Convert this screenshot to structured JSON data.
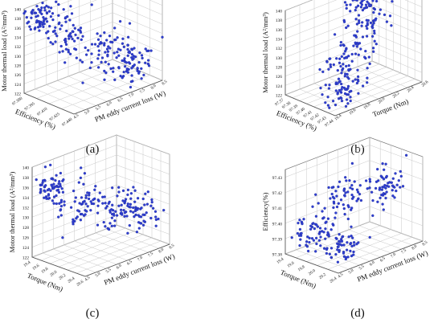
{
  "figure": {
    "panel_labels": [
      "(a)",
      "(b)",
      "(c)",
      "(d)"
    ]
  },
  "chart_data": [
    {
      "type": "scatter",
      "panel": "(a)",
      "dim": "3d",
      "zlabel": "Motor thermal load (A²/mm³)",
      "zticks": [
        "122",
        "124",
        "126",
        "128",
        "130",
        "132",
        "134",
        "136",
        "138",
        "140"
      ],
      "zlim": [
        122,
        140
      ],
      "xlabel": "Efficiency (%)",
      "xticks": [
        "97.380",
        "97.395",
        "97.410",
        "97.425",
        "97.440"
      ],
      "xlim": [
        97.38,
        97.44
      ],
      "ylabel": "PM eddy current loss (W)",
      "yticks": [
        "4.5",
        "5.0",
        "5.5",
        "6.0",
        "6.5",
        "7.0",
        "7.5",
        "8.0",
        "8.5"
      ],
      "ylim": [
        4.5,
        8.5
      ],
      "marker_color": "#2f3fd1",
      "clusters": [
        {
          "x": 97.386,
          "y": 4.9,
          "z": 138.0,
          "sx": 0.006,
          "sy": 0.35,
          "sz": 1.4,
          "n": 60
        },
        {
          "x": 97.402,
          "y": 5.6,
          "z": 134.0,
          "sx": 0.005,
          "sy": 0.45,
          "sz": 2.2,
          "n": 60
        },
        {
          "x": 97.42,
          "y": 6.8,
          "z": 130.0,
          "sx": 0.006,
          "sy": 0.55,
          "sz": 2.4,
          "n": 70
        },
        {
          "x": 97.432,
          "y": 7.6,
          "z": 126.5,
          "sx": 0.005,
          "sy": 0.45,
          "sz": 2.0,
          "n": 60
        }
      ]
    },
    {
      "type": "scatter",
      "panel": "(b)",
      "dim": "3d",
      "zlabel": "Motor thermal load (A²/mm³)",
      "zticks": [
        "122",
        "124",
        "126",
        "128",
        "130",
        "132",
        "134",
        "136",
        "138",
        "140"
      ],
      "zlim": [
        122,
        140
      ],
      "xlabel": "Efficiency (%)",
      "xticks": [
        "97.37",
        "97.38",
        "97.39",
        "97.40",
        "97.41",
        "97.42",
        "97.43",
        "97.44"
      ],
      "xlim": [
        97.37,
        97.44
      ],
      "ylabel": "Torque (Nm)",
      "yticks": [
        "19.4",
        "19.6",
        "19.8",
        "20.0",
        "20.2",
        "20.4",
        "20.6"
      ],
      "ylim": [
        19.4,
        20.6
      ],
      "marker_color": "#2f3fd1",
      "clusters": [
        {
          "x": 97.385,
          "y": 20.3,
          "z": 137.5,
          "sx": 0.006,
          "sy": 0.12,
          "sz": 1.6,
          "n": 55
        },
        {
          "x": 97.4,
          "y": 20.2,
          "z": 133.5,
          "sx": 0.006,
          "sy": 0.15,
          "sz": 2.0,
          "n": 45
        },
        {
          "x": 97.418,
          "y": 19.8,
          "z": 129.5,
          "sx": 0.006,
          "sy": 0.15,
          "sz": 2.2,
          "n": 70
        },
        {
          "x": 97.43,
          "y": 19.6,
          "z": 125.5,
          "sx": 0.005,
          "sy": 0.12,
          "sz": 1.8,
          "n": 50
        }
      ]
    },
    {
      "type": "scatter",
      "panel": "(c)",
      "dim": "3d",
      "zlabel": "Motor thermal load (A²/mm³)",
      "zticks": [
        "122",
        "124",
        "126",
        "128",
        "130",
        "132",
        "134",
        "136",
        "138",
        "140"
      ],
      "zlim": [
        122,
        140
      ],
      "xlabel": "Torque (Nm)",
      "xticks": [
        "19.4",
        "19.6",
        "19.8",
        "20.0",
        "20.2",
        "20.4",
        "20.6"
      ],
      "xlim": [
        19.4,
        20.6
      ],
      "ylabel": "PM eddy current loss (W)",
      "yticks": [
        "4.5",
        "5.0",
        "5.5",
        "6.0",
        "6.5",
        "7.0",
        "7.5",
        "8.0",
        "8.5"
      ],
      "ylim": [
        4.5,
        8.5
      ],
      "marker_color": "#2f3fd1",
      "clusters": [
        {
          "x": 19.6,
          "y": 5.0,
          "z": 136.0,
          "sx": 0.1,
          "sy": 0.4,
          "sz": 1.8,
          "n": 60
        },
        {
          "x": 19.9,
          "y": 5.8,
          "z": 132.5,
          "sx": 0.12,
          "sy": 0.5,
          "sz": 2.0,
          "n": 60
        },
        {
          "x": 20.15,
          "y": 7.0,
          "z": 130.5,
          "sx": 0.1,
          "sy": 0.45,
          "sz": 1.8,
          "n": 60
        },
        {
          "x": 20.3,
          "y": 7.8,
          "z": 128.5,
          "sx": 0.1,
          "sy": 0.35,
          "sz": 1.6,
          "n": 50
        }
      ]
    },
    {
      "type": "scatter",
      "panel": "(d)",
      "dim": "3d",
      "zlabel": "Efficiency(%)",
      "zticks": [
        "97.38",
        "97.39",
        "97.40",
        "97.41",
        "97.42",
        "97.43"
      ],
      "zlim": [
        97.38,
        97.435
      ],
      "xlabel": "Torque (Nm)",
      "xticks": [
        "19.4",
        "19.6",
        "19.8",
        "20.0",
        "20.2",
        "20.4"
      ],
      "xlim": [
        19.4,
        20.5
      ],
      "ylabel": "PM eddy current loss (W)",
      "yticks": [
        "4.5",
        "5.0",
        "5.5",
        "6.0",
        "6.5",
        "7.0",
        "7.5",
        "8.0",
        "8.5"
      ],
      "ylim": [
        4.5,
        8.5
      ],
      "marker_color": "#2f3fd1",
      "clusters": [
        {
          "x": 19.95,
          "y": 6.2,
          "z": 97.415,
          "sx": 0.12,
          "sy": 0.6,
          "sz": 0.008,
          "n": 70
        },
        {
          "x": 20.2,
          "y": 7.5,
          "z": 97.418,
          "sx": 0.1,
          "sy": 0.45,
          "sz": 0.006,
          "n": 50
        },
        {
          "x": 19.7,
          "y": 5.2,
          "z": 97.393,
          "sx": 0.12,
          "sy": 0.45,
          "sz": 0.006,
          "n": 60
        },
        {
          "x": 20.05,
          "y": 5.8,
          "z": 97.385,
          "sx": 0.1,
          "sy": 0.4,
          "sz": 0.005,
          "n": 50
        }
      ]
    }
  ]
}
